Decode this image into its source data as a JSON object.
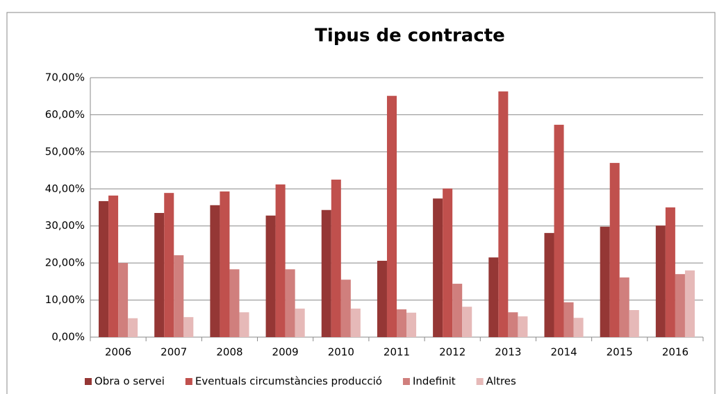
{
  "chart_data": {
    "type": "bar",
    "title": "Tipus de contracte",
    "categories": [
      "2006",
      "2007",
      "2008",
      "2009",
      "2010",
      "2011",
      "2012",
      "2013",
      "2014",
      "2015",
      "2016"
    ],
    "series": [
      {
        "name": "Obra o servei",
        "color": "#953735",
        "values": [
          36.7,
          33.5,
          35.6,
          32.8,
          34.3,
          20.6,
          37.4,
          21.5,
          28.1,
          29.8,
          30.1
        ]
      },
      {
        "name": "Eventuals circumstàncies producció",
        "color": "#c0504d",
        "values": [
          38.2,
          38.9,
          39.3,
          41.2,
          42.5,
          65.1,
          40.1,
          66.3,
          57.3,
          47.0,
          35.0
        ]
      },
      {
        "name": "Indefinit",
        "color": "#d07f7d",
        "values": [
          20.0,
          22.1,
          18.3,
          18.3,
          15.5,
          7.5,
          14.4,
          6.7,
          9.4,
          16.1,
          17.0
        ]
      },
      {
        "name": "Altres",
        "color": "#e6b9b8",
        "values": [
          5.1,
          5.4,
          6.7,
          7.7,
          7.7,
          6.6,
          8.2,
          5.6,
          5.2,
          7.3,
          18.0
        ]
      }
    ],
    "ylim": [
      0,
      70
    ],
    "yticks": [
      {
        "value": 0,
        "label": "0,00%"
      },
      {
        "value": 10,
        "label": "10,00%"
      },
      {
        "value": 20,
        "label": "20,00%"
      },
      {
        "value": 30,
        "label": "30,00%"
      },
      {
        "value": 40,
        "label": "40,00%"
      },
      {
        "value": 50,
        "label": "50,00%"
      },
      {
        "value": 60,
        "label": "60,00%"
      },
      {
        "value": 70,
        "label": "70,00%"
      }
    ],
    "grid": true,
    "legend": "bottom"
  }
}
